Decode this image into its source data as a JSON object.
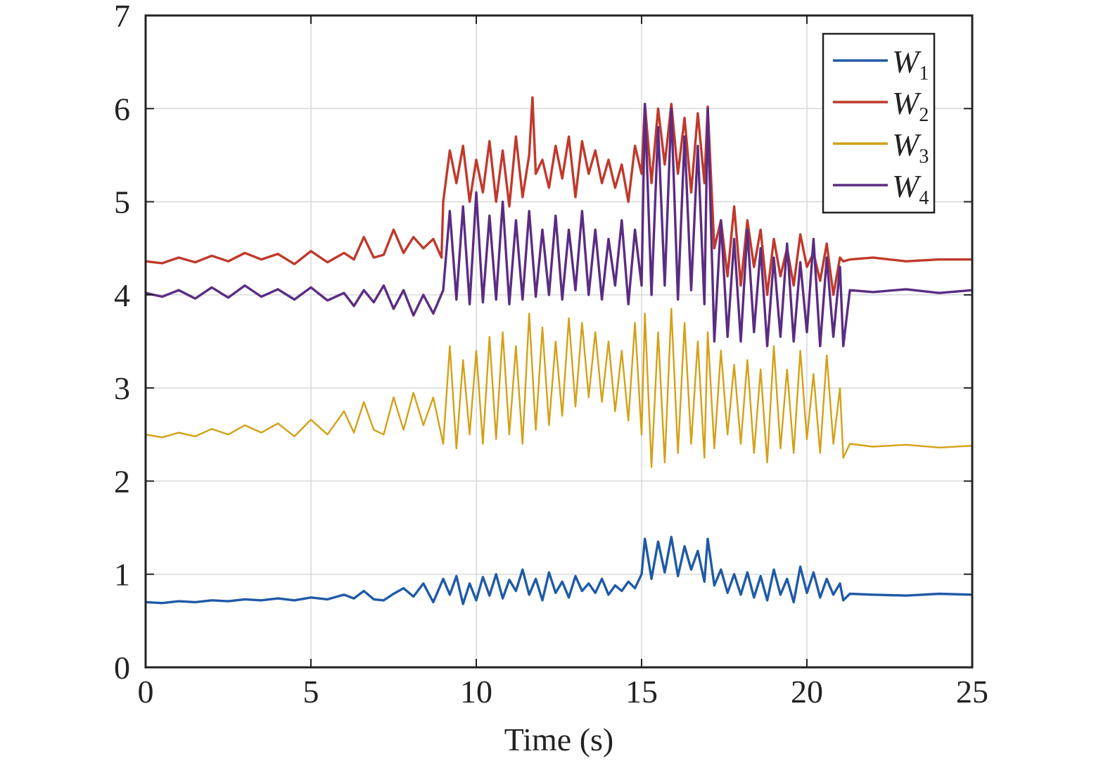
{
  "chart_data": {
    "type": "line",
    "title": "",
    "xlabel": "Time (s)",
    "ylabel": "",
    "xlim": [
      0,
      25
    ],
    "ylim": [
      0,
      7
    ],
    "xticks": [
      0,
      5,
      10,
      15,
      20,
      25
    ],
    "yticks": [
      0,
      1,
      2,
      3,
      4,
      5,
      6,
      7
    ],
    "grid": true,
    "legend_position": "top-right",
    "series": [
      {
        "name": "W",
        "subscript": "1",
        "color": "#1f5aa6",
        "x": [
          0,
          0.5,
          1,
          1.5,
          2,
          2.5,
          3,
          3.5,
          4,
          4.5,
          5,
          5.5,
          6,
          6.3,
          6.6,
          6.9,
          7.2,
          7.5,
          7.8,
          8.1,
          8.4,
          8.7,
          9.0,
          9.2,
          9.4,
          9.6,
          9.8,
          10.0,
          10.2,
          10.4,
          10.6,
          10.8,
          11.0,
          11.2,
          11.4,
          11.6,
          11.8,
          12.0,
          12.2,
          12.4,
          12.6,
          12.8,
          13.0,
          13.2,
          13.4,
          13.6,
          13.8,
          14.0,
          14.2,
          14.4,
          14.6,
          14.8,
          15.0,
          15.1,
          15.3,
          15.5,
          15.7,
          15.9,
          16.1,
          16.3,
          16.5,
          16.7,
          16.9,
          17.0,
          17.2,
          17.4,
          17.6,
          17.8,
          18.0,
          18.2,
          18.4,
          18.6,
          18.8,
          19.0,
          19.2,
          19.4,
          19.6,
          19.8,
          20.0,
          20.2,
          20.4,
          20.6,
          20.8,
          21.0,
          21.1,
          21.3,
          22,
          23,
          24,
          25
        ],
        "y": [
          0.7,
          0.69,
          0.71,
          0.7,
          0.72,
          0.71,
          0.73,
          0.72,
          0.74,
          0.72,
          0.75,
          0.73,
          0.78,
          0.74,
          0.82,
          0.73,
          0.72,
          0.79,
          0.85,
          0.76,
          0.9,
          0.7,
          0.95,
          0.78,
          0.98,
          0.68,
          0.9,
          0.72,
          0.97,
          0.77,
          1.0,
          0.74,
          0.94,
          0.82,
          1.05,
          0.78,
          0.95,
          0.72,
          1.02,
          0.8,
          0.92,
          0.75,
          0.98,
          0.82,
          0.9,
          0.8,
          0.95,
          0.78,
          0.88,
          0.82,
          0.92,
          0.85,
          1.0,
          1.38,
          0.95,
          1.35,
          1.02,
          1.4,
          0.98,
          1.3,
          1.05,
          1.25,
          0.92,
          1.38,
          0.88,
          1.05,
          0.8,
          1.0,
          0.78,
          1.02,
          0.75,
          0.98,
          0.72,
          1.05,
          0.78,
          0.95,
          0.7,
          1.08,
          0.8,
          1.02,
          0.75,
          0.95,
          0.78,
          0.9,
          0.72,
          0.79,
          0.78,
          0.77,
          0.79,
          0.78
        ]
      },
      {
        "name": "W",
        "subscript": "2",
        "color": "#c0392b",
        "x": [
          0,
          0.5,
          1,
          1.5,
          2,
          2.5,
          3,
          3.5,
          4,
          4.5,
          5,
          5.5,
          6,
          6.3,
          6.6,
          6.9,
          7.2,
          7.5,
          7.8,
          8.1,
          8.4,
          8.7,
          8.95,
          9.0,
          9.2,
          9.4,
          9.6,
          9.8,
          10.0,
          10.2,
          10.4,
          10.6,
          10.8,
          11.0,
          11.2,
          11.4,
          11.6,
          11.7,
          11.8,
          12.0,
          12.2,
          12.4,
          12.6,
          12.8,
          13.0,
          13.2,
          13.4,
          13.6,
          13.8,
          14.0,
          14.2,
          14.4,
          14.6,
          14.8,
          15.0,
          15.1,
          15.3,
          15.5,
          15.7,
          15.9,
          16.1,
          16.3,
          16.5,
          16.7,
          16.9,
          17.0,
          17.2,
          17.4,
          17.6,
          17.8,
          18.0,
          18.2,
          18.4,
          18.6,
          18.8,
          19.0,
          19.2,
          19.4,
          19.6,
          19.8,
          20.0,
          20.2,
          20.4,
          20.6,
          20.8,
          21.0,
          21.1,
          21.3,
          22,
          23,
          24,
          25
        ],
        "y": [
          4.36,
          4.34,
          4.4,
          4.35,
          4.42,
          4.36,
          4.45,
          4.38,
          4.44,
          4.33,
          4.47,
          4.35,
          4.45,
          4.38,
          4.62,
          4.4,
          4.43,
          4.7,
          4.45,
          4.62,
          4.5,
          4.6,
          4.4,
          5.0,
          5.55,
          5.2,
          5.6,
          5.0,
          5.45,
          5.1,
          5.65,
          5.0,
          5.55,
          4.95,
          5.7,
          5.05,
          5.5,
          6.12,
          5.3,
          5.45,
          5.15,
          5.6,
          5.25,
          5.7,
          5.05,
          5.65,
          5.3,
          5.55,
          5.2,
          5.45,
          5.15,
          5.4,
          5.0,
          5.6,
          5.3,
          6.05,
          5.2,
          6.0,
          5.4,
          6.05,
          5.3,
          5.9,
          5.1,
          5.95,
          5.2,
          6.02,
          4.5,
          4.8,
          4.2,
          4.95,
          4.1,
          4.8,
          4.3,
          4.7,
          4.0,
          4.6,
          4.2,
          4.5,
          4.1,
          4.65,
          4.3,
          4.45,
          4.15,
          4.55,
          4.0,
          4.4,
          4.36,
          4.38,
          4.4,
          4.36,
          4.38,
          4.38
        ]
      },
      {
        "name": "W",
        "subscript": "3",
        "color": "#d4a017",
        "x": [
          0,
          0.5,
          1,
          1.5,
          2,
          2.5,
          3,
          3.5,
          4,
          4.5,
          5,
          5.5,
          6,
          6.3,
          6.6,
          6.9,
          7.2,
          7.5,
          7.8,
          8.1,
          8.4,
          8.7,
          9.0,
          9.2,
          9.4,
          9.6,
          9.8,
          10.0,
          10.2,
          10.4,
          10.6,
          10.8,
          11.0,
          11.2,
          11.4,
          11.6,
          11.8,
          12.0,
          12.2,
          12.4,
          12.6,
          12.8,
          13.0,
          13.2,
          13.4,
          13.6,
          13.8,
          14.0,
          14.2,
          14.4,
          14.6,
          14.8,
          15.0,
          15.1,
          15.3,
          15.5,
          15.7,
          15.9,
          16.1,
          16.3,
          16.5,
          16.7,
          16.9,
          17.0,
          17.2,
          17.4,
          17.6,
          17.8,
          18.0,
          18.2,
          18.4,
          18.6,
          18.8,
          19.0,
          19.2,
          19.4,
          19.6,
          19.8,
          20.0,
          20.2,
          20.4,
          20.6,
          20.8,
          21.0,
          21.1,
          21.3,
          22,
          23,
          24,
          25
        ],
        "y": [
          2.5,
          2.47,
          2.52,
          2.48,
          2.56,
          2.5,
          2.6,
          2.52,
          2.62,
          2.48,
          2.66,
          2.5,
          2.75,
          2.52,
          2.85,
          2.55,
          2.5,
          2.9,
          2.55,
          2.95,
          2.6,
          2.9,
          2.4,
          3.45,
          2.35,
          3.3,
          2.5,
          3.4,
          2.4,
          3.55,
          2.45,
          3.6,
          2.5,
          3.45,
          2.4,
          3.8,
          2.55,
          3.65,
          2.6,
          3.5,
          2.7,
          3.75,
          2.8,
          3.7,
          2.9,
          3.6,
          2.85,
          3.5,
          2.75,
          3.4,
          2.65,
          3.7,
          2.5,
          3.8,
          2.15,
          3.6,
          2.2,
          3.85,
          2.3,
          3.7,
          2.4,
          3.5,
          2.25,
          3.6,
          2.35,
          3.4,
          2.5,
          3.25,
          2.4,
          3.3,
          2.3,
          3.2,
          2.2,
          3.45,
          2.35,
          3.2,
          2.3,
          3.4,
          2.45,
          3.15,
          2.3,
          3.35,
          2.4,
          3.0,
          2.25,
          2.4,
          2.37,
          2.39,
          2.36,
          2.38
        ]
      },
      {
        "name": "W",
        "subscript": "4",
        "color": "#5b2c83",
        "x": [
          0,
          0.5,
          1,
          1.5,
          2,
          2.5,
          3,
          3.5,
          4,
          4.5,
          5,
          5.5,
          6,
          6.3,
          6.6,
          6.9,
          7.2,
          7.5,
          7.8,
          8.1,
          8.4,
          8.7,
          9.0,
          9.2,
          9.4,
          9.6,
          9.8,
          10.0,
          10.2,
          10.4,
          10.6,
          10.8,
          11.0,
          11.2,
          11.4,
          11.6,
          11.8,
          12.0,
          12.2,
          12.4,
          12.6,
          12.8,
          13.0,
          13.2,
          13.4,
          13.6,
          13.8,
          14.0,
          14.2,
          14.4,
          14.6,
          14.8,
          15.0,
          15.1,
          15.3,
          15.5,
          15.7,
          15.9,
          16.1,
          16.3,
          16.5,
          16.7,
          16.9,
          17.0,
          17.2,
          17.4,
          17.6,
          17.8,
          18.0,
          18.2,
          18.4,
          18.6,
          18.8,
          19.0,
          19.2,
          19.4,
          19.6,
          19.8,
          20.0,
          20.2,
          20.4,
          20.6,
          20.8,
          21.0,
          21.1,
          21.3,
          22,
          23,
          24,
          25
        ],
        "y": [
          4.02,
          3.98,
          4.05,
          3.96,
          4.08,
          3.97,
          4.1,
          3.98,
          4.06,
          3.95,
          4.08,
          3.94,
          4.02,
          3.88,
          4.05,
          3.92,
          4.1,
          3.85,
          4.05,
          3.78,
          4.0,
          3.8,
          4.05,
          4.9,
          3.95,
          4.95,
          3.9,
          5.1,
          3.92,
          4.85,
          3.95,
          5.0,
          3.9,
          4.8,
          3.95,
          4.9,
          3.98,
          4.7,
          4.0,
          4.85,
          3.95,
          4.7,
          4.05,
          4.9,
          4.0,
          4.7,
          3.95,
          4.6,
          4.1,
          4.8,
          3.9,
          4.7,
          4.1,
          6.05,
          4.0,
          5.8,
          4.1,
          6.0,
          3.95,
          5.7,
          4.05,
          5.6,
          3.9,
          6.0,
          3.5,
          4.8,
          3.55,
          4.6,
          3.5,
          4.7,
          3.6,
          4.5,
          3.45,
          4.4,
          3.55,
          4.55,
          3.5,
          4.35,
          3.6,
          4.6,
          3.45,
          4.4,
          3.55,
          4.3,
          3.45,
          4.05,
          4.03,
          4.06,
          4.02,
          4.05
        ]
      }
    ]
  }
}
